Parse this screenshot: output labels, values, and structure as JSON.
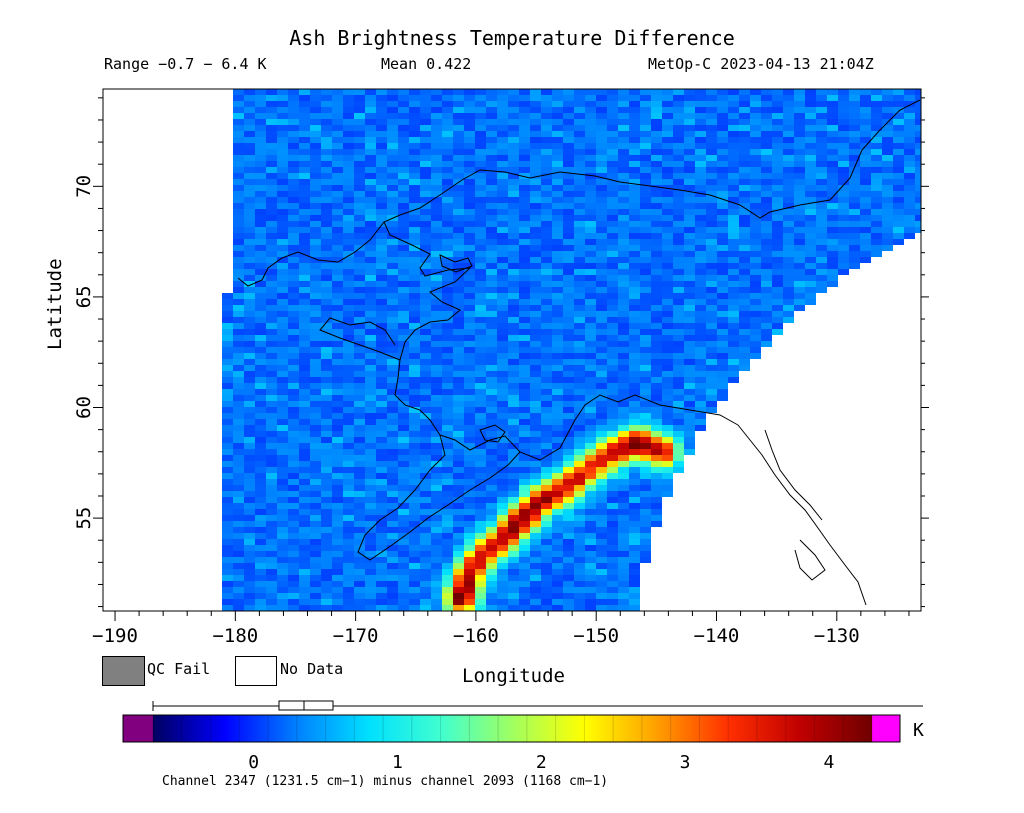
{
  "header": {
    "title": "Ash Brightness Temperature Difference",
    "range": "Range −0.7 − 6.4 K",
    "mean": "Mean 0.422",
    "satellite": "MetOp-C 2023-04-13 21:04Z"
  },
  "legend": {
    "qc_fail": "QC Fail",
    "no_data": "No Data",
    "qc_fail_color": "#808080",
    "no_data_color": "#ffffff"
  },
  "colorbar": {
    "unit": "K",
    "caption": "Channel 2347 (1231.5 cm−1) minus channel 2093 (1168 cm−1)",
    "ticks": [
      0,
      1,
      2,
      3,
      4
    ],
    "range": [
      -0.7,
      4.3
    ],
    "underflow_color": "#800080",
    "overflow_color": "#ff00ff",
    "stops": [
      "#000060",
      "#0000ff",
      "#0080ff",
      "#00e0ff",
      "#40ffd0",
      "#a0ff60",
      "#ffff00",
      "#ffa000",
      "#ff3000",
      "#c00000",
      "#700000"
    ]
  },
  "chart_data": {
    "type": "heatmap",
    "title": "Ash Brightness Temperature Difference",
    "xlabel": "Longitude",
    "ylabel": "Latitude",
    "xlim": [
      -191,
      -123
    ],
    "ylim": [
      50.8,
      74.4
    ],
    "x_ticks": [
      -190,
      -180,
      -170,
      -160,
      -150,
      -140,
      -130
    ],
    "y_ticks": [
      55,
      60,
      65,
      70
    ],
    "value_unit": "K",
    "ash_plume": [
      {
        "lon": -161.2,
        "lat": 51.4,
        "value": 4.3
      },
      {
        "lon": -160.5,
        "lat": 52.5,
        "value": 3.6
      },
      {
        "lon": -159.3,
        "lat": 53.4,
        "value": 3.4
      },
      {
        "lon": -157.8,
        "lat": 54.0,
        "value": 3.6
      },
      {
        "lon": -156.5,
        "lat": 54.8,
        "value": 4.0
      },
      {
        "lon": -154.5,
        "lat": 55.8,
        "value": 3.8
      },
      {
        "lon": -152.5,
        "lat": 56.4,
        "value": 3.5
      },
      {
        "lon": -150.5,
        "lat": 57.3,
        "value": 3.2
      },
      {
        "lon": -148.5,
        "lat": 58.0,
        "value": 3.6
      },
      {
        "lon": -146.5,
        "lat": 58.4,
        "value": 4.1
      },
      {
        "lon": -144.5,
        "lat": 58.0,
        "value": 3.7
      }
    ]
  }
}
